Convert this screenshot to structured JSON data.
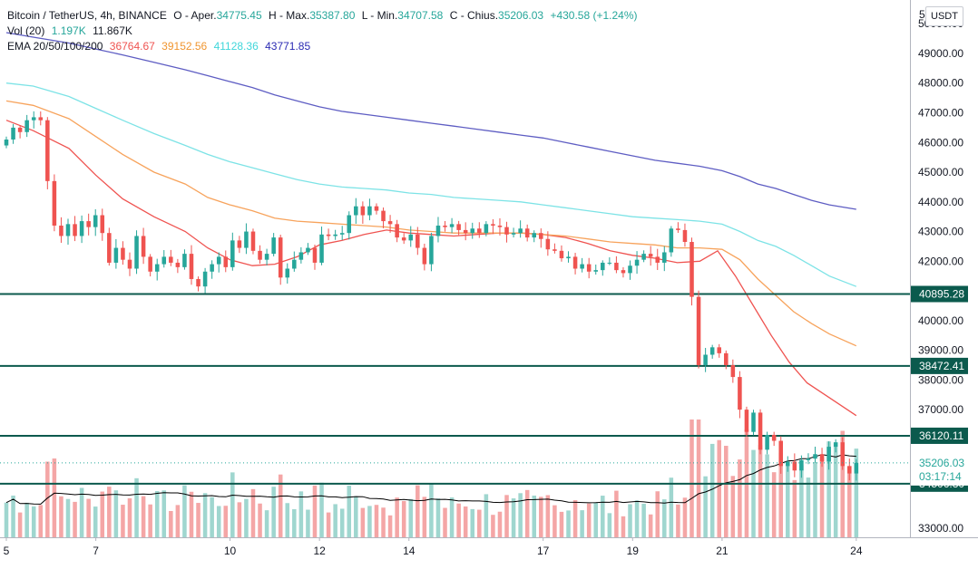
{
  "header": {
    "symbol": "Bitcoin / TetherUS, 4h, BINANCE",
    "o_label": "O - Aper.",
    "o_value": "34775.45",
    "h_label": "H - Max.",
    "h_value": "35387.80",
    "l_label": "L - Min.",
    "l_value": "34707.58",
    "c_label": "C - Chius.",
    "c_value": "35206.03",
    "change": "+430.58 (+1.24%)",
    "vol_label": "Vol (20)",
    "vol_value1": "1.197K",
    "vol_value2": "11.867K",
    "ema_label": "EMA 20/50/100/200",
    "ema_values": [
      "36764.67",
      "39152.56",
      "41128.36",
      "43771.85"
    ]
  },
  "currency": "USDT",
  "colors": {
    "up": "#26a69a",
    "down": "#ef5350",
    "up_volume": "#9fd6cf",
    "down_volume": "#f4a6a6",
    "ema20": "#ef5350",
    "ema50": "#f7a35c",
    "ema100": "#7de3e6",
    "ema200": "#5e5dc3",
    "level": "#0b5a4d",
    "volume_ma": "#000000"
  },
  "chart_data": {
    "type": "candlestick",
    "symbol": "Bitcoin / TetherUS",
    "interval": "4h",
    "exchange": "BINANCE",
    "ylim": [
      32700,
      50800
    ],
    "y_ticks": [
      "33000.00",
      "37000.00",
      "38000.00",
      "39000.00",
      "40000.00",
      "42000.00",
      "43000.00",
      "44000.00",
      "45000.00",
      "46000.00",
      "47000.00",
      "48000.00",
      "49000.00",
      "50000.00"
    ],
    "top_tick_fragment": "5",
    "x_range": [
      5,
      25.2
    ],
    "x_ticks": [
      {
        "x": 5,
        "label": "5"
      },
      {
        "x": 7,
        "label": "7"
      },
      {
        "x": 10,
        "label": "10"
      },
      {
        "x": 12,
        "label": "12"
      },
      {
        "x": 14,
        "label": "14"
      },
      {
        "x": 17,
        "label": "17"
      },
      {
        "x": 19,
        "label": "19"
      },
      {
        "x": 21,
        "label": "21"
      },
      {
        "x": 24,
        "label": "24"
      }
    ],
    "price_levels": [
      {
        "value": 40895.28,
        "label": "40895.28"
      },
      {
        "value": 38472.41,
        "label": "38472.41"
      },
      {
        "value": 36120.11,
        "label": "36120.11"
      },
      {
        "value": 34506.3,
        "label": "34506.30"
      }
    ],
    "last_price": {
      "value": 35206.03,
      "label": "35206.03",
      "countdown": "03:17:14"
    },
    "candle_closes": [
      46100,
      46500,
      46350,
      46750,
      46850,
      46750,
      44700,
      43200,
      42850,
      43250,
      42850,
      43350,
      43150,
      43550,
      42950,
      41950,
      42450,
      42050,
      41750,
      42850,
      42150,
      41650,
      41900,
      42150,
      41950,
      41800,
      42250,
      41400,
      41150,
      41650,
      41900,
      42150,
      41800,
      42700,
      42450,
      43000,
      42350,
      42050,
      42250,
      42800,
      41450,
      41750,
      42050,
      42300,
      42450,
      41950,
      42900,
      42850,
      42900,
      42950,
      43550,
      43850,
      43550,
      43850,
      43700,
      43350,
      43250,
      42800,
      42700,
      42900,
      42450,
      41900,
      42850,
      43200,
      43150,
      43250,
      43050,
      42950,
      43100,
      42950,
      43250,
      43200,
      43150,
      42900,
      42950,
      43100,
      42800,
      42950,
      42750,
      42400,
      42350,
      42100,
      42150,
      41750,
      41900,
      41650,
      41700,
      41950,
      41950,
      41700,
      41600,
      41850,
      42050,
      42250,
      42150,
      41950,
      42300,
      43100,
      43050,
      42650,
      40800,
      38500,
      38850,
      39100,
      38900,
      38500,
      38100,
      37000,
      36250,
      36900,
      35650,
      36150,
      35950,
      35100,
      35250,
      34950,
      35300,
      35350,
      35500,
      35250,
      35750,
      35900,
      35100,
      34850,
      35206.03
    ],
    "volume_ma_level": "low, rising into final day",
    "ema_lines": [
      {
        "name": "EMA 20",
        "points": [
          [
            5.0,
            46750
          ],
          [
            5.6,
            46400
          ],
          [
            6.4,
            45800
          ],
          [
            7.0,
            44900
          ],
          [
            7.6,
            44100
          ],
          [
            8.3,
            43500
          ],
          [
            9.0,
            43000
          ],
          [
            9.5,
            42450
          ],
          [
            10.0,
            42050
          ],
          [
            10.5,
            41850
          ],
          [
            11.0,
            41900
          ],
          [
            11.5,
            42150
          ],
          [
            12.0,
            42550
          ],
          [
            12.5,
            42700
          ],
          [
            13.0,
            42900
          ],
          [
            13.5,
            43050
          ],
          [
            14.0,
            42950
          ],
          [
            14.5,
            42900
          ],
          [
            15.0,
            42850
          ],
          [
            15.5,
            42900
          ],
          [
            16.0,
            42950
          ],
          [
            16.5,
            42950
          ],
          [
            17.0,
            42900
          ],
          [
            17.5,
            42800
          ],
          [
            18.0,
            42600
          ],
          [
            18.5,
            42350
          ],
          [
            19.0,
            42200
          ],
          [
            19.5,
            42100
          ],
          [
            20.0,
            41950
          ],
          [
            20.5,
            42000
          ],
          [
            20.9,
            42350
          ],
          [
            21.3,
            41500
          ],
          [
            21.7,
            40500
          ],
          [
            22.1,
            39500
          ],
          [
            22.5,
            38600
          ],
          [
            22.9,
            37900
          ],
          [
            23.3,
            37500
          ],
          [
            23.7,
            37100
          ],
          [
            24.0,
            36800
          ]
        ]
      },
      {
        "name": "EMA 50",
        "points": [
          [
            5.0,
            47400
          ],
          [
            5.6,
            47250
          ],
          [
            6.4,
            46800
          ],
          [
            7.0,
            46200
          ],
          [
            7.6,
            45600
          ],
          [
            8.3,
            45000
          ],
          [
            9.0,
            44600
          ],
          [
            9.5,
            44150
          ],
          [
            10.0,
            43900
          ],
          [
            10.5,
            43700
          ],
          [
            11.0,
            43450
          ],
          [
            11.5,
            43350
          ],
          [
            12.0,
            43300
          ],
          [
            12.5,
            43250
          ],
          [
            13.0,
            43200
          ],
          [
            13.5,
            43150
          ],
          [
            14.0,
            43050
          ],
          [
            14.5,
            43000
          ],
          [
            15.0,
            42950
          ],
          [
            15.5,
            42950
          ],
          [
            16.0,
            42950
          ],
          [
            16.5,
            42950
          ],
          [
            17.0,
            42900
          ],
          [
            17.5,
            42850
          ],
          [
            18.0,
            42750
          ],
          [
            18.5,
            42650
          ],
          [
            19.0,
            42600
          ],
          [
            19.5,
            42550
          ],
          [
            20.0,
            42450
          ],
          [
            20.5,
            42450
          ],
          [
            21.0,
            42400
          ],
          [
            21.4,
            42050
          ],
          [
            21.8,
            41400
          ],
          [
            22.2,
            40850
          ],
          [
            22.6,
            40300
          ],
          [
            23.0,
            39900
          ],
          [
            23.4,
            39550
          ],
          [
            24.0,
            39150
          ]
        ]
      },
      {
        "name": "EMA 100",
        "points": [
          [
            5.0,
            48000
          ],
          [
            5.6,
            47900
          ],
          [
            6.4,
            47550
          ],
          [
            7.0,
            47150
          ],
          [
            7.6,
            46750
          ],
          [
            8.3,
            46300
          ],
          [
            9.0,
            45900
          ],
          [
            9.5,
            45600
          ],
          [
            10.0,
            45350
          ],
          [
            10.5,
            45150
          ],
          [
            11.0,
            44950
          ],
          [
            11.5,
            44750
          ],
          [
            12.0,
            44600
          ],
          [
            12.5,
            44500
          ],
          [
            13.0,
            44450
          ],
          [
            13.5,
            44400
          ],
          [
            14.0,
            44300
          ],
          [
            14.5,
            44250
          ],
          [
            15.0,
            44150
          ],
          [
            15.5,
            44100
          ],
          [
            16.0,
            44050
          ],
          [
            16.5,
            44000
          ],
          [
            17.0,
            43900
          ],
          [
            17.5,
            43800
          ],
          [
            18.0,
            43700
          ],
          [
            18.5,
            43600
          ],
          [
            19.0,
            43500
          ],
          [
            19.5,
            43450
          ],
          [
            20.0,
            43400
          ],
          [
            20.5,
            43350
          ],
          [
            21.0,
            43250
          ],
          [
            21.4,
            43000
          ],
          [
            21.8,
            42700
          ],
          [
            22.2,
            42500
          ],
          [
            22.6,
            42200
          ],
          [
            23.0,
            41850
          ],
          [
            23.4,
            41500
          ],
          [
            24.0,
            41150
          ]
        ]
      },
      {
        "name": "EMA 200",
        "points": [
          [
            5.0,
            49700
          ],
          [
            5.6,
            49550
          ],
          [
            6.4,
            49350
          ],
          [
            7.0,
            49150
          ],
          [
            7.6,
            48950
          ],
          [
            8.3,
            48700
          ],
          [
            9.0,
            48450
          ],
          [
            9.5,
            48250
          ],
          [
            10.0,
            48050
          ],
          [
            10.5,
            47850
          ],
          [
            11.0,
            47600
          ],
          [
            11.5,
            47400
          ],
          [
            12.0,
            47200
          ],
          [
            12.5,
            47050
          ],
          [
            13.0,
            46950
          ],
          [
            13.5,
            46850
          ],
          [
            14.0,
            46750
          ],
          [
            14.5,
            46650
          ],
          [
            15.0,
            46550
          ],
          [
            15.5,
            46450
          ],
          [
            16.0,
            46350
          ],
          [
            16.5,
            46250
          ],
          [
            17.0,
            46150
          ],
          [
            17.5,
            46000
          ],
          [
            18.0,
            45850
          ],
          [
            18.5,
            45700
          ],
          [
            19.0,
            45550
          ],
          [
            19.5,
            45400
          ],
          [
            20.0,
            45300
          ],
          [
            20.5,
            45200
          ],
          [
            21.0,
            45050
          ],
          [
            21.4,
            44850
          ],
          [
            21.8,
            44600
          ],
          [
            22.2,
            44450
          ],
          [
            22.6,
            44250
          ],
          [
            23.0,
            44050
          ],
          [
            23.4,
            43900
          ],
          [
            24.0,
            43750
          ]
        ]
      }
    ]
  }
}
